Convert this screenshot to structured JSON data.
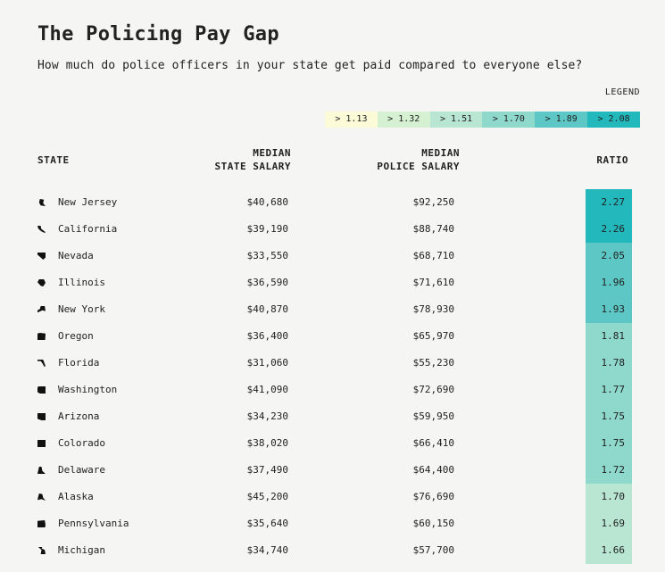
{
  "title": "The Policing Pay Gap",
  "subtitle": "How much do police officers in your state get paid compared to everyone else?",
  "legend": {
    "label": "LEGEND",
    "items": [
      {
        "label": "> 1.13",
        "color": "#fbfbd8"
      },
      {
        "label": "> 1.32",
        "color": "#d6f0d2"
      },
      {
        "label": "> 1.51",
        "color": "#b8e6d2"
      },
      {
        "label": "> 1.70",
        "color": "#8ed8cc"
      },
      {
        "label": "> 1.89",
        "color": "#5cc7c4"
      },
      {
        "label": "> 2.08",
        "color": "#23b8bc"
      }
    ]
  },
  "headers": {
    "state": "STATE",
    "median_line1": "MEDIAN",
    "median_line2": "STATE SALARY",
    "police_line1": "MEDIAN",
    "police_line2": "POLICE SALARY",
    "ratio": "RATIO"
  },
  "rows": [
    {
      "state": "New Jersey",
      "median": "$40,680",
      "police": "$92,250",
      "ratio": "2.27",
      "color": "#23b8bc",
      "icon": "new-jersey-icon"
    },
    {
      "state": "California",
      "median": "$39,190",
      "police": "$88,740",
      "ratio": "2.26",
      "color": "#23b8bc",
      "icon": "california-icon"
    },
    {
      "state": "Nevada",
      "median": "$33,550",
      "police": "$68,710",
      "ratio": "2.05",
      "color": "#5cc7c4",
      "icon": "nevada-icon"
    },
    {
      "state": "Illinois",
      "median": "$36,590",
      "police": "$71,610",
      "ratio": "1.96",
      "color": "#5cc7c4",
      "icon": "illinois-icon"
    },
    {
      "state": "New York",
      "median": "$40,870",
      "police": "$78,930",
      "ratio": "1.93",
      "color": "#5cc7c4",
      "icon": "new-york-icon"
    },
    {
      "state": "Oregon",
      "median": "$36,400",
      "police": "$65,970",
      "ratio": "1.81",
      "color": "#8ed8cc",
      "icon": "oregon-icon"
    },
    {
      "state": "Florida",
      "median": "$31,060",
      "police": "$55,230",
      "ratio": "1.78",
      "color": "#8ed8cc",
      "icon": "florida-icon"
    },
    {
      "state": "Washington",
      "median": "$41,090",
      "police": "$72,690",
      "ratio": "1.77",
      "color": "#8ed8cc",
      "icon": "washington-icon"
    },
    {
      "state": "Arizona",
      "median": "$34,230",
      "police": "$59,950",
      "ratio": "1.75",
      "color": "#8ed8cc",
      "icon": "arizona-icon"
    },
    {
      "state": "Colorado",
      "median": "$38,020",
      "police": "$66,410",
      "ratio": "1.75",
      "color": "#8ed8cc",
      "icon": "colorado-icon"
    },
    {
      "state": "Delaware",
      "median": "$37,490",
      "police": "$64,400",
      "ratio": "1.72",
      "color": "#8ed8cc",
      "icon": "delaware-icon"
    },
    {
      "state": "Alaska",
      "median": "$45,200",
      "police": "$76,690",
      "ratio": "1.70",
      "color": "#b8e6d2",
      "icon": "alaska-icon"
    },
    {
      "state": "Pennsylvania",
      "median": "$35,640",
      "police": "$60,150",
      "ratio": "1.69",
      "color": "#b8e6d2",
      "icon": "pennsylvania-icon"
    },
    {
      "state": "Michigan",
      "median": "$34,740",
      "police": "$57,700",
      "ratio": "1.66",
      "color": "#b8e6d2",
      "icon": "michigan-icon"
    }
  ]
}
